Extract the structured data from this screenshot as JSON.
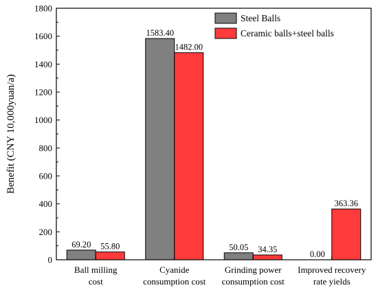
{
  "chart_data": {
    "type": "bar",
    "title": "",
    "xlabel": "",
    "ylabel": "Benefit (CNY 10,000yuan/a)",
    "ylim": [
      0,
      1800
    ],
    "yticks": [
      0,
      200,
      400,
      600,
      800,
      1000,
      1200,
      1400,
      1600,
      1800
    ],
    "grid": false,
    "legend_position": "top-right",
    "categories": [
      [
        "Ball milling",
        "cost"
      ],
      [
        "Cyanide",
        "consumption cost"
      ],
      [
        "Grinding power",
        "consumption cost"
      ],
      [
        "Improved recovery",
        "rate yields"
      ]
    ],
    "series": [
      {
        "name": "Steel Balls",
        "color": "#808080",
        "values": [
          69.2,
          1583.4,
          50.05,
          0.0
        ],
        "labels": [
          "69.20",
          "1583.40",
          "50.05",
          "0.00"
        ]
      },
      {
        "name": "Ceramic balls+steel balls",
        "color": "#ff3b3b",
        "values": [
          55.8,
          1482.0,
          34.35,
          363.36
        ],
        "labels": [
          "55.80",
          "1482.00",
          "34.35",
          "363.36"
        ]
      }
    ]
  }
}
